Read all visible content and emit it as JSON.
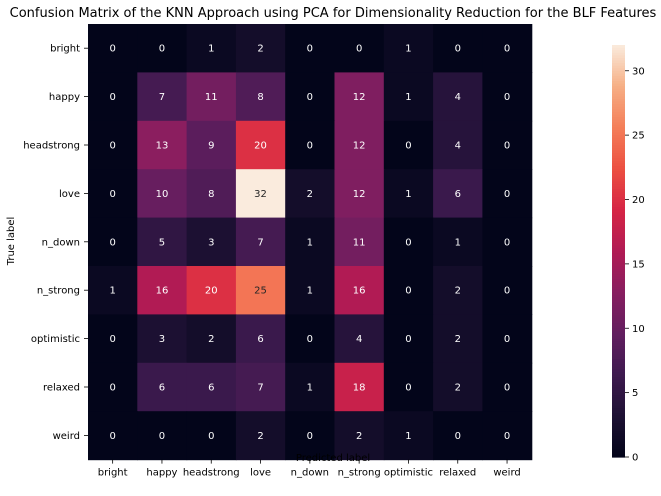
{
  "chart_data": {
    "type": "heatmap",
    "title": "Confusion Matrix of the KNN Approach using PCA for Dimensionality Reduction for the BLF Features",
    "xlabel": "Predicted label",
    "ylabel": "True label",
    "x_categories": [
      "bright",
      "happy",
      "headstrong",
      "love",
      "n_down",
      "n_strong",
      "optimistic",
      "relaxed",
      "weird"
    ],
    "y_categories": [
      "bright",
      "happy",
      "headstrong",
      "love",
      "n_down",
      "n_strong",
      "optimistic",
      "relaxed",
      "weird"
    ],
    "values": [
      [
        0,
        0,
        1,
        2,
        0,
        0,
        1,
        0,
        0
      ],
      [
        0,
        7,
        11,
        8,
        0,
        12,
        1,
        4,
        0
      ],
      [
        0,
        13,
        9,
        20,
        0,
        12,
        0,
        4,
        0
      ],
      [
        0,
        10,
        8,
        32,
        2,
        12,
        1,
        6,
        0
      ],
      [
        0,
        5,
        3,
        7,
        1,
        11,
        0,
        1,
        0
      ],
      [
        1,
        16,
        20,
        25,
        1,
        16,
        0,
        2,
        0
      ],
      [
        0,
        3,
        2,
        6,
        0,
        4,
        0,
        2,
        0
      ],
      [
        0,
        6,
        6,
        7,
        1,
        18,
        0,
        2,
        0
      ],
      [
        0,
        0,
        0,
        2,
        0,
        2,
        1,
        0,
        0
      ]
    ],
    "colorbar": {
      "min": 0,
      "max": 32,
      "ticks": [
        0,
        5,
        10,
        15,
        20,
        25,
        30
      ]
    },
    "colormap": "rocket"
  }
}
